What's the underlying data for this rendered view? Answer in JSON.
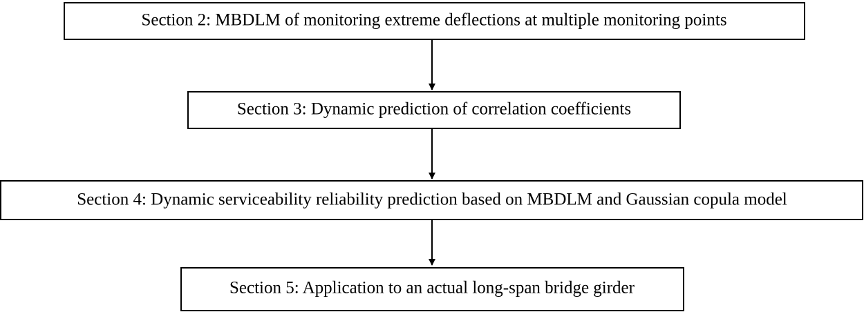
{
  "nodes": [
    {
      "label": "Section 2: MBDLM of monitoring extreme deflections at multiple monitoring points"
    },
    {
      "label": "Section 3: Dynamic prediction of correlation coefficients"
    },
    {
      "label": "Section 4: Dynamic serviceability reliability prediction based on MBDLM and Gaussian copula model"
    },
    {
      "label": "Section 5: Application to an actual long-span bridge girder"
    }
  ]
}
